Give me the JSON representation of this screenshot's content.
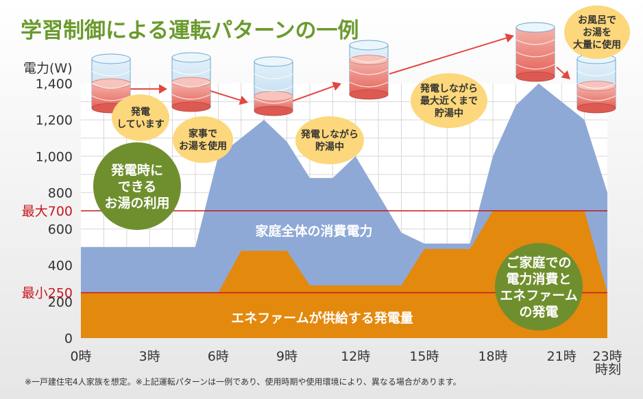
{
  "footnote": "※一戸建住宅4人家族を想定。※上記運転パターンは一例であり、使用時期や使用環境により、異なる場合があります。",
  "chart_data": {
    "type": "area",
    "title": "学習制御による運転パターンの一例",
    "ylabel": "電力(W)",
    "xlabel": "時刻",
    "xlim": [
      0,
      23
    ],
    "ylim": [
      0,
      1400
    ],
    "grid": true,
    "y_ticks": [
      {
        "value": 0,
        "label": "0"
      },
      {
        "value": 200,
        "label": "200"
      },
      {
        "value": 400,
        "label": "400"
      },
      {
        "value": 600,
        "label": "600"
      },
      {
        "value": 800,
        "label": "800"
      },
      {
        "value": 1000,
        "label": "1,000"
      },
      {
        "value": 1200,
        "label": "1,200"
      },
      {
        "value": 1400,
        "label": "1,400"
      }
    ],
    "x_ticks": [
      {
        "value": 0,
        "label": "0時"
      },
      {
        "value": 3,
        "label": "3時"
      },
      {
        "value": 6,
        "label": "6時"
      },
      {
        "value": 9,
        "label": "9時"
      },
      {
        "value": 12,
        "label": "12時"
      },
      {
        "value": 15,
        "label": "15時"
      },
      {
        "value": 18,
        "label": "18時"
      },
      {
        "value": 21,
        "label": "21時"
      },
      {
        "value": 23,
        "label": "23時"
      }
    ],
    "reference_lines": [
      {
        "value": 700,
        "label": "最大700",
        "color": "#c8161d"
      },
      {
        "value": 250,
        "label": "最小250",
        "color": "#c8161d"
      }
    ],
    "series": [
      {
        "name": "家庭全体の消費電力",
        "color": "#8fa9d6",
        "x": [
          0,
          5,
          6,
          8,
          9,
          10,
          11,
          12,
          14,
          15,
          17,
          18,
          19,
          20,
          22,
          23
        ],
        "y": [
          500,
          500,
          1000,
          1200,
          1080,
          880,
          880,
          1000,
          580,
          520,
          520,
          1000,
          1280,
          1400,
          1200,
          800
        ]
      },
      {
        "name": "エネファームが供給する発電量",
        "color": "#e3890e",
        "x": [
          0,
          6,
          7,
          9,
          10,
          14,
          15,
          17,
          18,
          22,
          23
        ],
        "y": [
          250,
          250,
          480,
          480,
          290,
          290,
          490,
          490,
          700,
          700,
          250
        ]
      }
    ],
    "annotations": [
      {
        "type": "bubble",
        "lines": [
          "発電",
          "しています"
        ]
      },
      {
        "type": "bubble",
        "lines": [
          "家事で",
          "お湯を使用"
        ]
      },
      {
        "type": "bubble",
        "lines": [
          "発電しながら",
          "貯湯中"
        ]
      },
      {
        "type": "bubble",
        "lines": [
          "発電しながら",
          "最大近くまで",
          "貯湯中"
        ]
      },
      {
        "type": "bubble",
        "lines": [
          "お風呂で",
          "お湯を",
          "大量に使用"
        ]
      },
      {
        "type": "circle",
        "lines": [
          "発電時に",
          "できる",
          "お湯の利用"
        ]
      },
      {
        "type": "circle",
        "lines": [
          "ご家庭での",
          "電力消費と",
          "エネファーム",
          "の発電"
        ]
      }
    ],
    "tank_levels": [
      0.5,
      0.5,
      0.3,
      0.7,
      1.0,
      0.45
    ]
  }
}
